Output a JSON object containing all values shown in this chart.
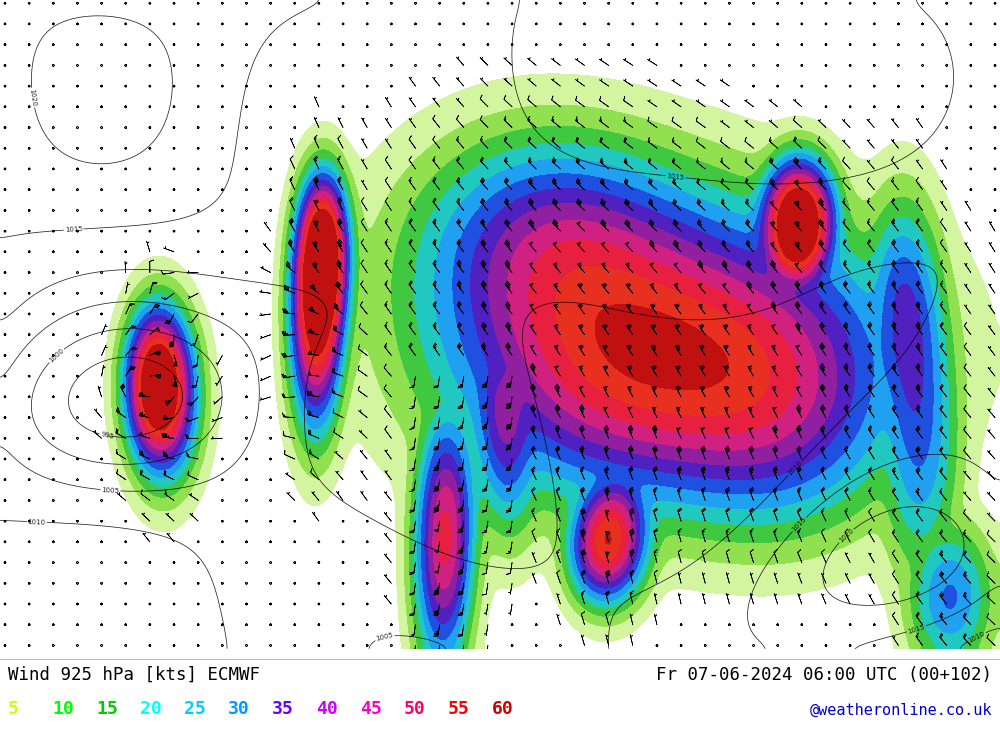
{
  "title_left": "Wind 925 hPa [kts] ECMWF",
  "title_right": "Fr 07-06-2024 06:00 UTC (00+102)",
  "credit": "@weatheronline.co.uk",
  "legend_values": [
    5,
    10,
    15,
    20,
    25,
    30,
    35,
    40,
    45,
    50,
    55,
    60
  ],
  "legend_colors": [
    "#ccff00",
    "#00ff00",
    "#00cc00",
    "#00ffff",
    "#00ccff",
    "#0099ff",
    "#6600ff",
    "#cc00ff",
    "#ff00cc",
    "#ff0066",
    "#ff0000",
    "#cc0000"
  ],
  "bg_color": "#ffffff",
  "fill_colors": [
    "#ffffff",
    "#d4f5a0",
    "#90e050",
    "#40c840",
    "#20c8c0",
    "#20a0f0",
    "#2050e0",
    "#5020c0",
    "#9020a0",
    "#d02080",
    "#e82040",
    "#e83020",
    "#c01010"
  ],
  "fill_levels": [
    0,
    5,
    10,
    15,
    20,
    25,
    30,
    35,
    40,
    45,
    50,
    55,
    60,
    120
  ],
  "figsize": [
    10.0,
    7.33
  ],
  "dpi": 100
}
